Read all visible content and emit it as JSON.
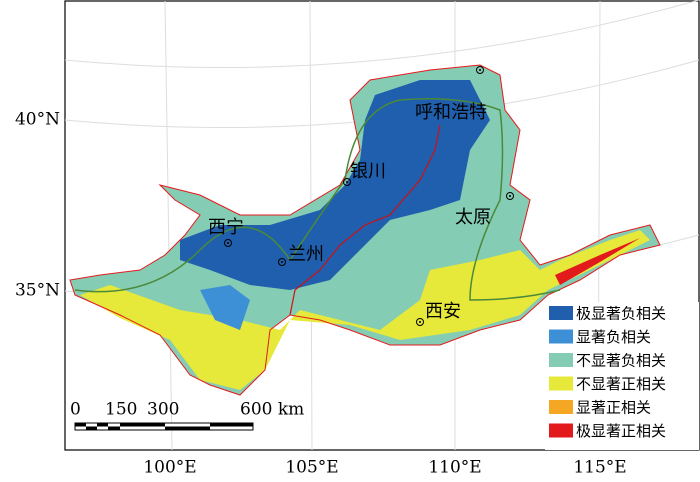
{
  "map": {
    "lat_labels": [
      "40°N",
      "35°N"
    ],
    "lon_labels": [
      "100°E",
      "105°E",
      "110°E",
      "115°E"
    ],
    "cities": [
      "呼和浩特",
      "银川",
      "太原",
      "西宁",
      "兰州",
      "西安"
    ],
    "scale_bar": {
      "labels": [
        "0",
        "150",
        "300",
        "600 km"
      ]
    },
    "legend": [
      {
        "label": "极显著负相关",
        "color": "#1f5fad"
      },
      {
        "label": "显著负相关",
        "color": "#3d8fd6"
      },
      {
        "label": "不显著负相关",
        "color": "#85ccb4"
      },
      {
        "label": "不显著正相关",
        "color": "#e6e83a"
      },
      {
        "label": "显著正相关",
        "color": "#f5a623"
      },
      {
        "label": "极显著正相关",
        "color": "#e31a1c"
      }
    ]
  }
}
